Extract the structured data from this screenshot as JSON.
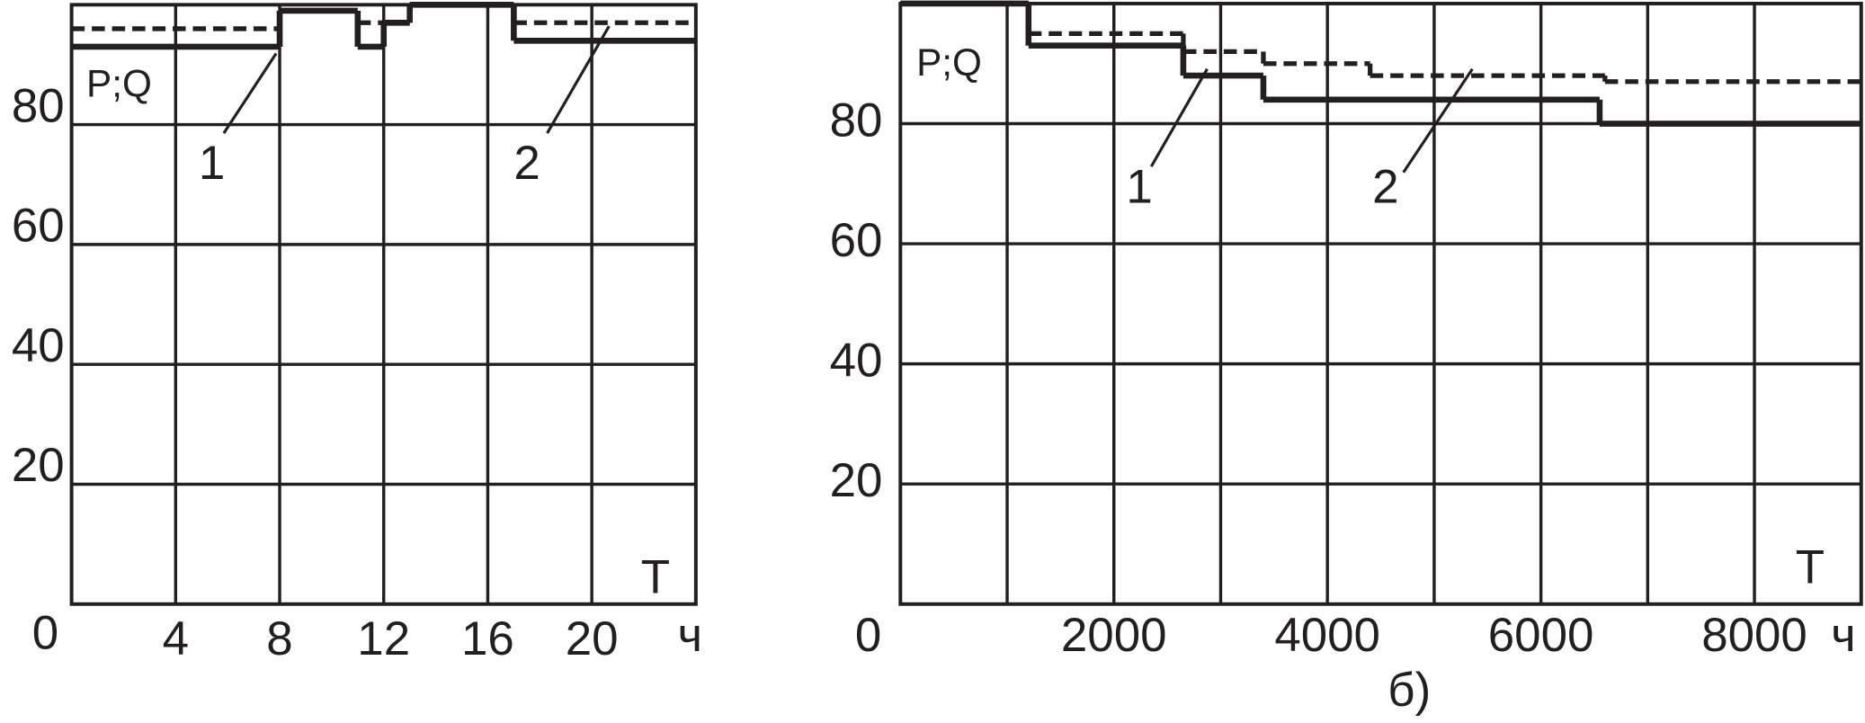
{
  "chart_data": [
    {
      "type": "step",
      "annotation": "P;Q",
      "x_label": "T",
      "x_unit": "ч",
      "origin_label": "0",
      "xlim": [
        0,
        24
      ],
      "xticks": [
        4,
        8,
        12,
        16,
        20
      ],
      "ylim": [
        0,
        100
      ],
      "yticks": [
        20,
        40,
        60,
        80
      ],
      "grid": true,
      "series": [
        {
          "name": "1",
          "color": "#231f20",
          "dashed": false,
          "bins": [
            0,
            8,
            11,
            12,
            13,
            17,
            24
          ],
          "values": [
            93,
            99,
            93,
            97,
            100,
            94
          ]
        },
        {
          "name": "2",
          "color": "#231f20",
          "dashed": true,
          "bins": [
            0,
            8,
            11,
            12,
            13,
            17,
            24
          ],
          "values": [
            96,
            99,
            97,
            97,
            100,
            97
          ]
        }
      ]
    },
    {
      "type": "step",
      "annotation": "P;Q",
      "x_label": "T",
      "x_unit": "ч",
      "origin_label": "0",
      "caption": "б)",
      "xlim": [
        0,
        9000
      ],
      "xticks": [
        2000,
        4000,
        6000,
        8000
      ],
      "x_minor_ticks": [
        1000,
        3000,
        5000,
        7000
      ],
      "ylim": [
        0,
        100
      ],
      "yticks": [
        20,
        40,
        60,
        80
      ],
      "grid": true,
      "series": [
        {
          "name": "1",
          "color": "#231f20",
          "dashed": false,
          "bins": [
            0,
            1200,
            2650,
            3400,
            6550,
            9000
          ],
          "values": [
            100,
            93,
            88,
            84,
            80
          ]
        },
        {
          "name": "2",
          "color": "#231f20",
          "dashed": true,
          "bins": [
            0,
            1200,
            2650,
            3400,
            4400,
            6600,
            9000
          ],
          "values": [
            100,
            95,
            92,
            90,
            88,
            87
          ]
        }
      ]
    }
  ]
}
